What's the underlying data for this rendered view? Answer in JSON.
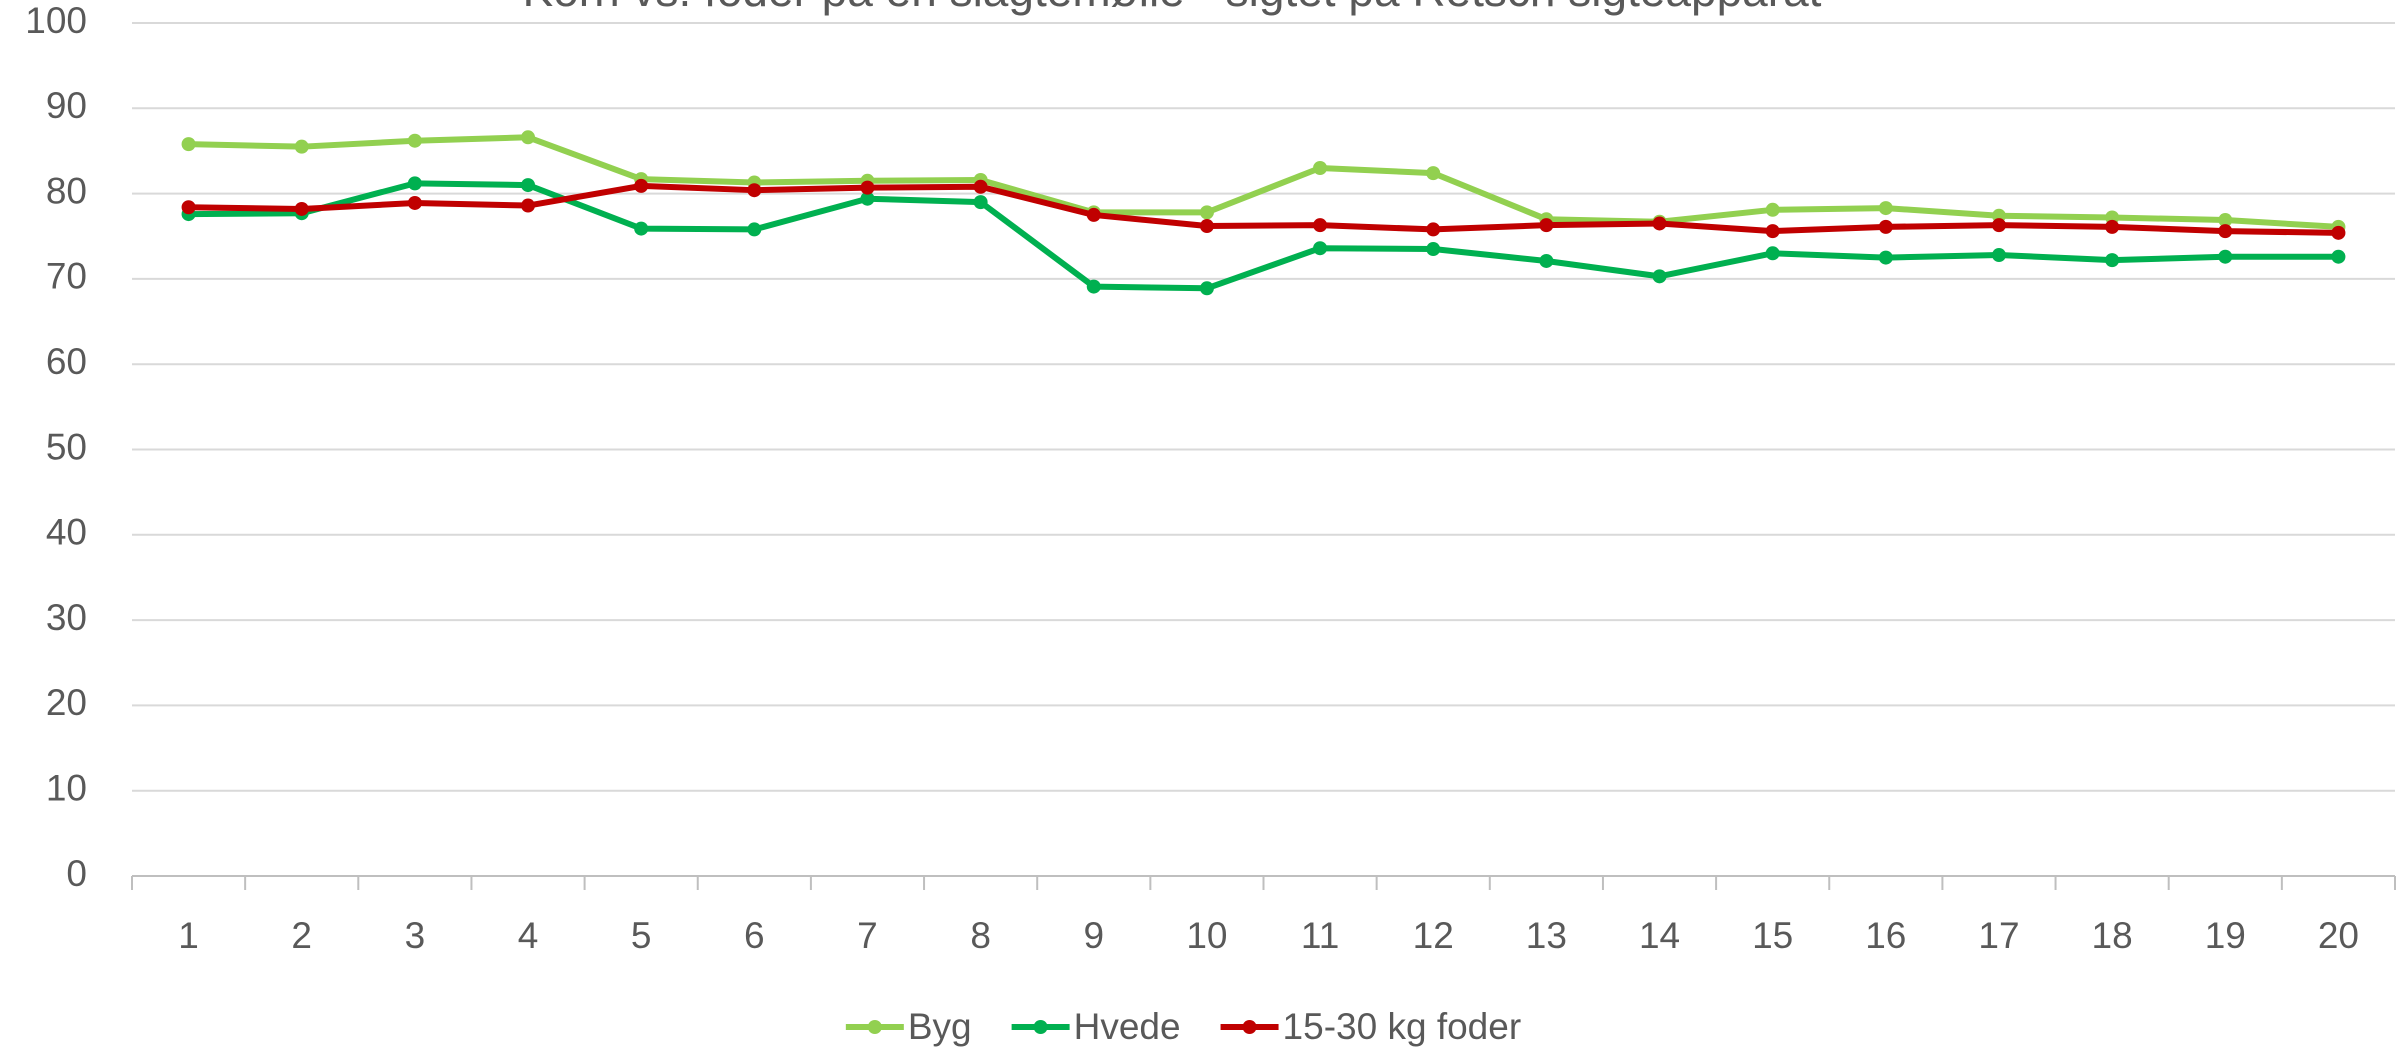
{
  "chart_data": {
    "type": "line",
    "title": "Korn vs. foder på en slagtemølle - sigtet på Retsch sigteapparat",
    "categories": [
      "1",
      "2",
      "3",
      "4",
      "5",
      "6",
      "7",
      "8",
      "9",
      "10",
      "11",
      "12",
      "13",
      "14",
      "15",
      "16",
      "17",
      "18",
      "19",
      "20"
    ],
    "series": [
      {
        "name": "Byg",
        "color": "#92d050",
        "values": [
          85.8,
          85.5,
          86.2,
          86.6,
          81.7,
          81.3,
          81.5,
          81.6,
          77.8,
          77.8,
          83.0,
          82.4,
          77.0,
          76.7,
          78.1,
          78.3,
          77.4,
          77.2,
          76.9,
          76.1
        ]
      },
      {
        "name": "Hvede",
        "color": "#00b050",
        "values": [
          77.6,
          77.7,
          81.2,
          81.0,
          75.9,
          75.8,
          79.4,
          79.0,
          69.1,
          68.9,
          73.6,
          73.5,
          72.1,
          70.3,
          73.0,
          72.5,
          72.8,
          72.2,
          72.6,
          72.6
        ]
      },
      {
        "name": "15-30 kg foder",
        "color": "#c00000",
        "values": [
          78.4,
          78.2,
          78.9,
          78.6,
          80.9,
          80.4,
          80.7,
          80.8,
          77.5,
          76.2,
          76.3,
          75.8,
          76.3,
          76.5,
          75.6,
          76.1,
          76.3,
          76.1,
          75.6,
          75.4
        ]
      }
    ],
    "ylim": [
      0,
      100
    ],
    "yticks": [
      0,
      10,
      20,
      30,
      40,
      50,
      60,
      70,
      80,
      90,
      100
    ],
    "grid": true,
    "legend": "bottom"
  }
}
